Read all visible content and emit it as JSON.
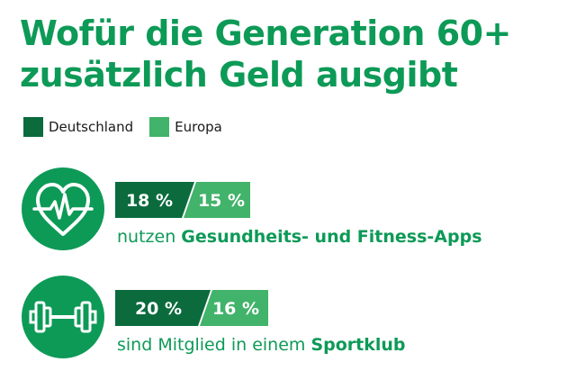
{
  "title": {
    "line1": "Wofür die Generation 60+",
    "line2": "zusätzlich Geld ausgibt"
  },
  "colors": {
    "title": "#0d9a57",
    "deutschland": "#0b6b3d",
    "europa": "#42b36a",
    "icon_bg": "#0d9a57"
  },
  "legend": [
    {
      "label": "Deutschland",
      "color": "#0b6b3d"
    },
    {
      "label": "Europa",
      "color": "#42b36a"
    }
  ],
  "rows": [
    {
      "icon": "heart-pulse-icon",
      "deutschland_label": "18 %",
      "europa_label": "15 %",
      "caption_prefix": "nutzen ",
      "caption_bold": "Gesundheits- und Fitness-Apps"
    },
    {
      "icon": "dumbbell-icon",
      "deutschland_label": "20 %",
      "europa_label": "16 %",
      "caption_prefix": "sind Mitglied in einem ",
      "caption_bold": "Sportklub"
    }
  ],
  "chart_data": {
    "type": "bar",
    "title": "Wofür die Generation 60+ zusätzlich Geld ausgibt",
    "categories": [
      "Gesundheits- und Fitness-Apps",
      "Sportklub"
    ],
    "series": [
      {
        "name": "Deutschland",
        "values": [
          18,
          20
        ]
      },
      {
        "name": "Europa",
        "values": [
          15,
          16
        ]
      }
    ],
    "unit": "%",
    "legend_position": "top-left"
  }
}
